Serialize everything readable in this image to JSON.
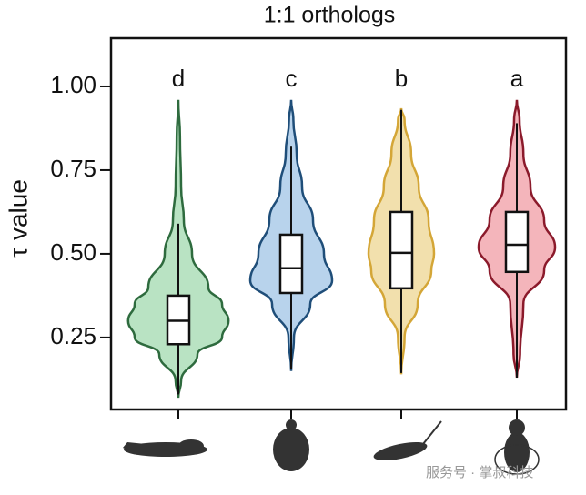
{
  "chart_data": {
    "type": "violin",
    "title": "1:1 orthologs",
    "y_label": "τ value",
    "categories": [
      null,
      null,
      null,
      null
    ],
    "ylim": [
      0.035,
      1.144
    ],
    "yticks": [
      {
        "value": 0.25,
        "label": "0.25"
      },
      {
        "value": 0.5,
        "label": "0.50"
      },
      {
        "value": 0.75,
        "label": "0.75"
      },
      {
        "value": 1.0,
        "label": "1.00"
      }
    ],
    "series": [
      {
        "label": "d",
        "color": "#b9e3c3",
        "stroke": "#2e6b3e",
        "low": 0.08,
        "q1": 0.23,
        "median": 0.3,
        "q3": 0.375,
        "high": 0.59,
        "density": {
          "y": [
            0.07,
            0.12,
            0.2,
            0.25,
            0.3,
            0.35,
            0.4,
            0.5,
            0.6,
            0.7,
            0.85,
            0.96
          ],
          "width": [
            0,
            0.05,
            0.35,
            0.8,
            0.92,
            0.8,
            0.55,
            0.25,
            0.1,
            0.05,
            0.03,
            0
          ]
        }
      },
      {
        "label": "c",
        "color": "#b8d3ec",
        "stroke": "#1f4e79",
        "low": 0.155,
        "q1": 0.383,
        "median": 0.457,
        "q3": 0.557,
        "high": 0.82,
        "density": {
          "y": [
            0.15,
            0.25,
            0.35,
            0.42,
            0.5,
            0.6,
            0.7,
            0.8,
            0.9,
            0.96
          ],
          "width": [
            0,
            0.05,
            0.35,
            0.75,
            0.6,
            0.4,
            0.2,
            0.1,
            0.04,
            0
          ]
        }
      },
      {
        "label": "b",
        "color": "#f2e0ad",
        "stroke": "#d4a637",
        "low": 0.144,
        "q1": 0.397,
        "median": 0.503,
        "q3": 0.625,
        "high": 0.93,
        "density": {
          "y": [
            0.14,
            0.25,
            0.35,
            0.45,
            0.5,
            0.6,
            0.7,
            0.8,
            0.9,
            0.935
          ],
          "width": [
            0,
            0.06,
            0.3,
            0.55,
            0.6,
            0.5,
            0.32,
            0.18,
            0.06,
            0
          ]
        }
      },
      {
        "label": "a",
        "color": "#f4b5bb",
        "stroke": "#8b1a2b",
        "low": 0.13,
        "q1": 0.446,
        "median": 0.527,
        "q3": 0.625,
        "high": 0.89,
        "density": {
          "y": [
            0.13,
            0.2,
            0.35,
            0.45,
            0.52,
            0.6,
            0.7,
            0.8,
            0.9,
            0.96
          ],
          "width": [
            0,
            0.06,
            0.12,
            0.5,
            0.7,
            0.5,
            0.25,
            0.12,
            0.05,
            0
          ]
        }
      }
    ],
    "watermark": "服务号 · 掌叔科技"
  }
}
